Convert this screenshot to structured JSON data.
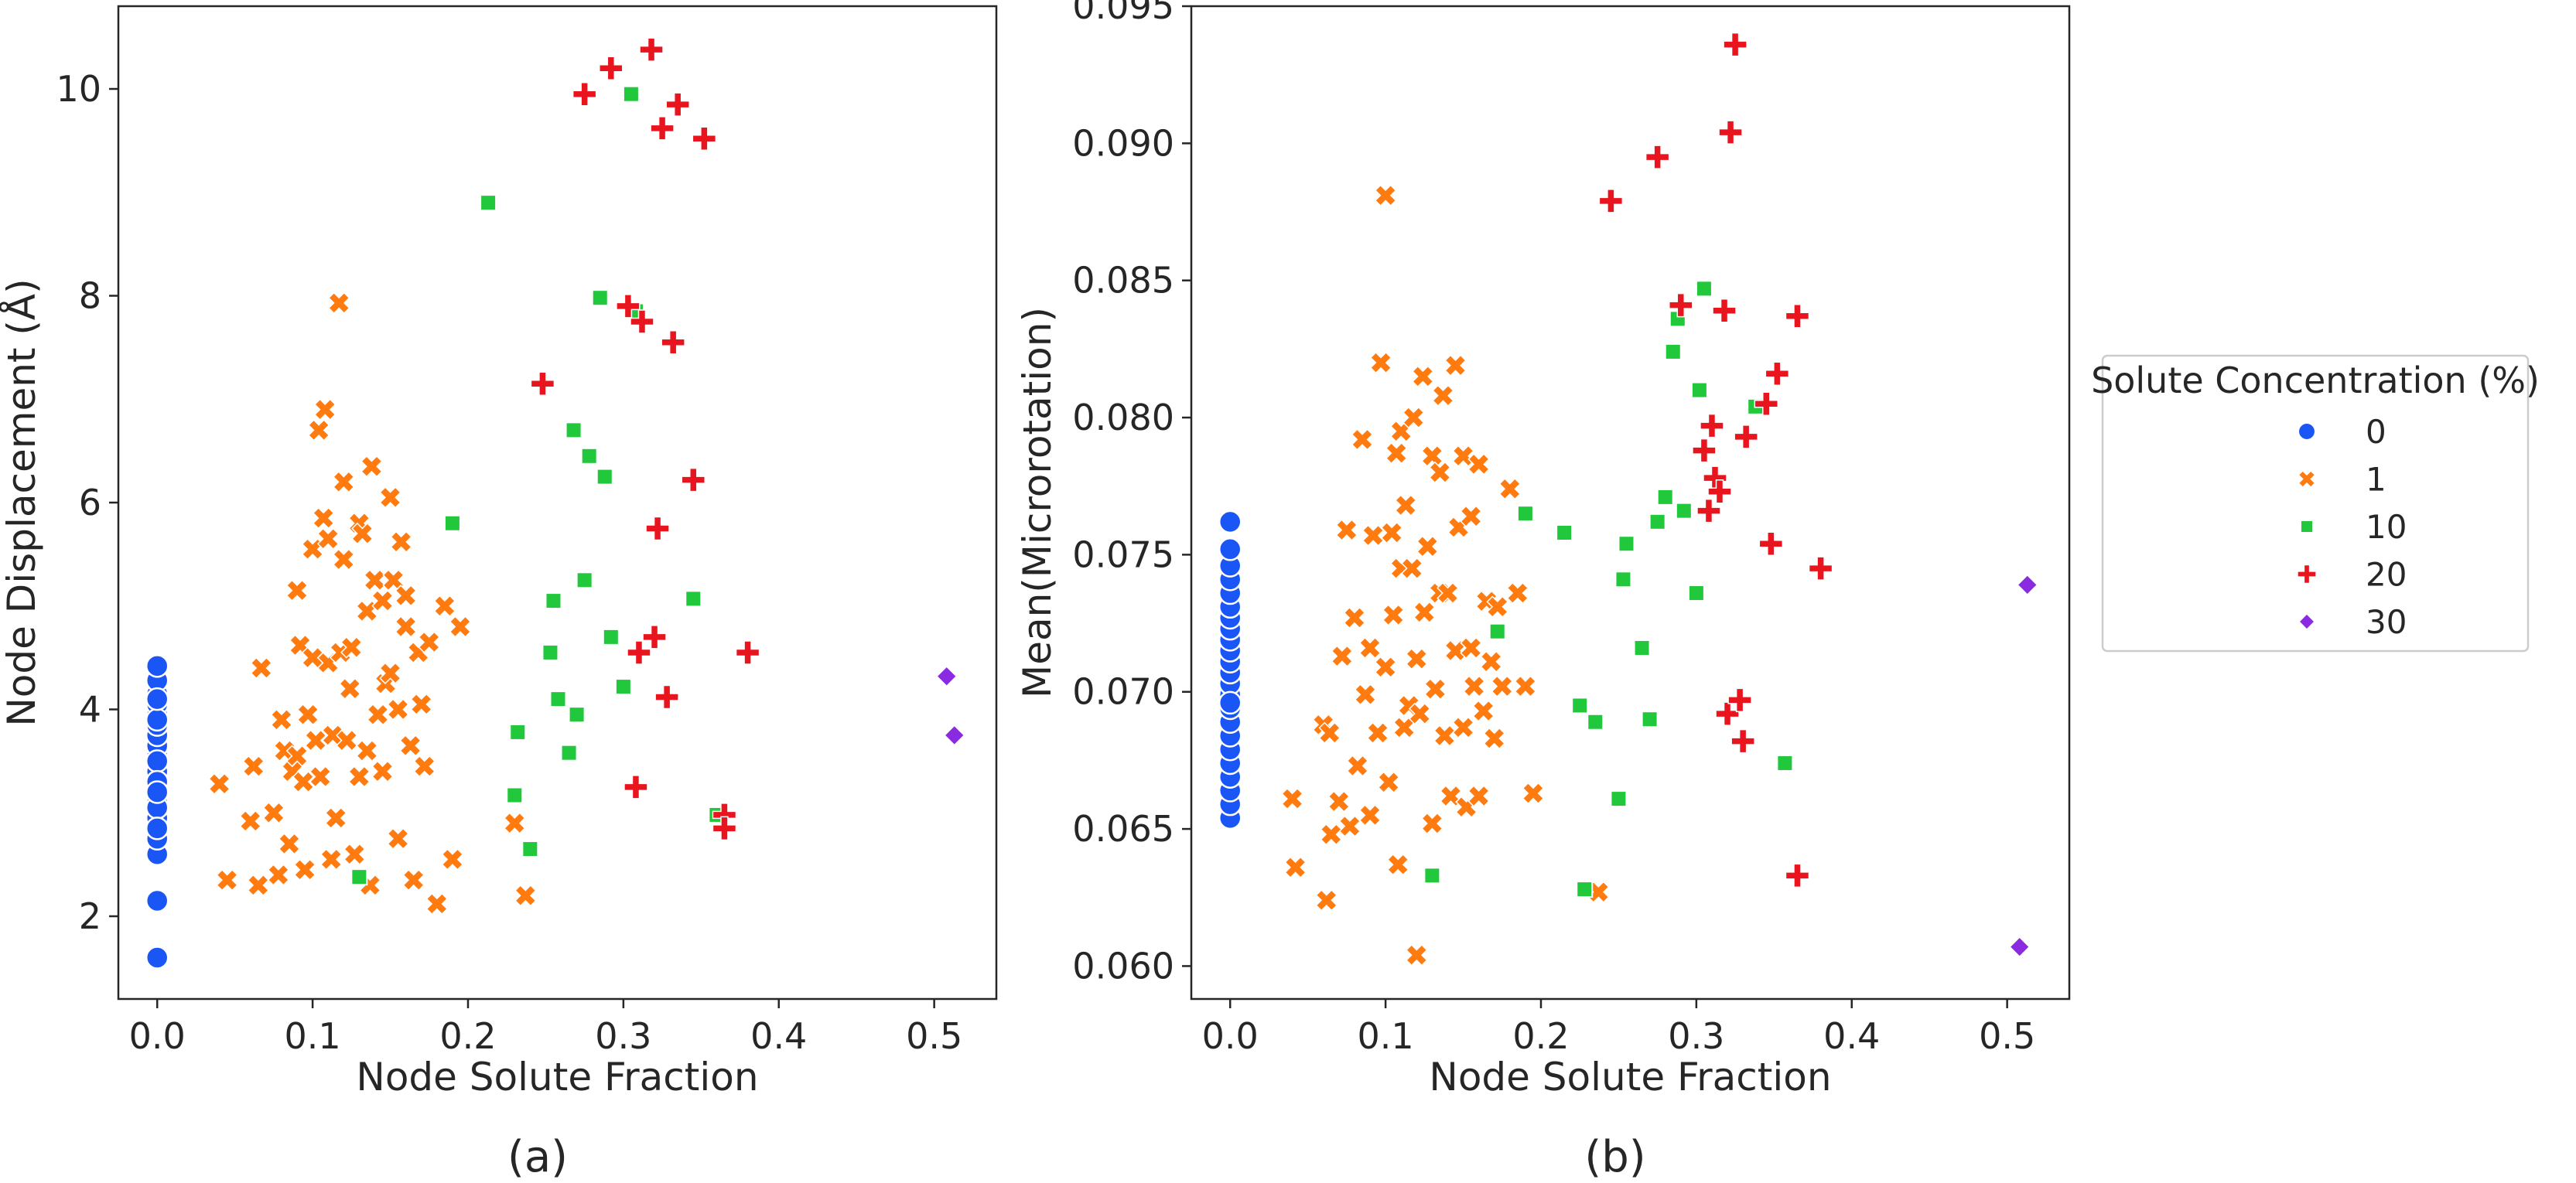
{
  "legend": {
    "title": "Solute Concentration (%)",
    "placement": "outside-right",
    "entries": [
      {
        "label": "0",
        "color": "#1a55f5",
        "marker": "circle"
      },
      {
        "label": "1",
        "color": "#ff7a0f",
        "marker": "x"
      },
      {
        "label": "10",
        "color": "#22c83c",
        "marker": "square"
      },
      {
        "label": "20",
        "color": "#e8141e",
        "marker": "plus"
      },
      {
        "label": "30",
        "color": "#8a2be2",
        "marker": "diamond"
      }
    ]
  },
  "panel_labels": [
    "(a)",
    "(b)"
  ],
  "chart_data": [
    {
      "type": "scatter",
      "xlabel": "Node Solute Fraction",
      "ylabel": "Node Displacement (Å)",
      "xlim": [
        -0.025,
        0.54
      ],
      "ylim": [
        1.2,
        10.8
      ],
      "xticks": [
        0.0,
        0.1,
        0.2,
        0.3,
        0.4,
        0.5
      ],
      "yticks": [
        2,
        4,
        6,
        8,
        10
      ],
      "xtick_labels": [
        "0.0",
        "0.1",
        "0.2",
        "0.3",
        "0.4",
        "0.5"
      ],
      "ytick_labels": [
        "2",
        "4",
        "6",
        "8",
        "10"
      ],
      "grid": false,
      "series": [
        {
          "name": "0",
          "x": [
            0,
            0,
            0,
            0,
            0,
            0,
            0,
            0,
            0,
            0,
            0,
            0,
            0,
            0,
            0,
            0,
            0,
            0,
            0,
            0,
            0,
            0,
            0,
            0
          ],
          "y": [
            1.6,
            2.15,
            2.6,
            2.75,
            2.95,
            3.1,
            3.25,
            3.4,
            3.55,
            3.65,
            3.75,
            3.85,
            3.95,
            4.05,
            4.15,
            4.28,
            4.42,
            3.05,
            3.5,
            3.3,
            2.85,
            3.2,
            3.9,
            4.1
          ]
        },
        {
          "name": "1",
          "x": [
            0.04,
            0.045,
            0.06,
            0.062,
            0.065,
            0.067,
            0.075,
            0.078,
            0.08,
            0.082,
            0.085,
            0.087,
            0.09,
            0.09,
            0.092,
            0.094,
            0.095,
            0.097,
            0.1,
            0.1,
            0.102,
            0.104,
            0.105,
            0.107,
            0.108,
            0.11,
            0.11,
            0.112,
            0.113,
            0.115,
            0.117,
            0.118,
            0.12,
            0.12,
            0.122,
            0.124,
            0.125,
            0.127,
            0.13,
            0.13,
            0.132,
            0.135,
            0.135,
            0.137,
            0.138,
            0.14,
            0.142,
            0.145,
            0.145,
            0.147,
            0.15,
            0.15,
            0.152,
            0.155,
            0.155,
            0.157,
            0.16,
            0.16,
            0.163,
            0.165,
            0.168,
            0.17,
            0.172,
            0.175,
            0.18,
            0.185,
            0.19,
            0.195,
            0.23,
            0.237
          ],
          "y": [
            3.28,
            2.35,
            2.92,
            3.45,
            2.3,
            4.4,
            3.0,
            2.4,
            3.9,
            3.6,
            2.7,
            3.4,
            3.55,
            5.15,
            4.62,
            3.3,
            2.45,
            3.95,
            4.5,
            5.55,
            3.7,
            6.7,
            3.35,
            5.85,
            6.9,
            4.45,
            5.65,
            2.55,
            3.75,
            2.95,
            7.93,
            4.55,
            5.45,
            6.2,
            3.7,
            4.2,
            4.6,
            2.6,
            5.8,
            3.35,
            5.7,
            3.6,
            4.95,
            2.3,
            6.35,
            5.25,
            3.95,
            5.05,
            3.4,
            4.25,
            6.05,
            4.35,
            5.25,
            2.75,
            4.0,
            5.62,
            4.8,
            5.1,
            3.65,
            2.35,
            4.55,
            4.05,
            3.45,
            4.65,
            2.12,
            5.0,
            2.55,
            4.8,
            2.9,
            2.2
          ]
        },
        {
          "name": "10",
          "x": [
            0.13,
            0.19,
            0.213,
            0.23,
            0.232,
            0.24,
            0.253,
            0.255,
            0.258,
            0.265,
            0.268,
            0.27,
            0.275,
            0.278,
            0.285,
            0.288,
            0.292,
            0.3,
            0.305,
            0.308,
            0.345,
            0.36
          ],
          "y": [
            2.38,
            5.8,
            8.9,
            3.17,
            3.78,
            2.65,
            4.55,
            5.05,
            4.1,
            3.58,
            6.7,
            3.95,
            5.25,
            6.45,
            7.98,
            6.25,
            4.7,
            4.22,
            9.95,
            7.85,
            5.07,
            2.98
          ]
        },
        {
          "name": "20",
          "x": [
            0.248,
            0.275,
            0.292,
            0.303,
            0.308,
            0.31,
            0.312,
            0.318,
            0.32,
            0.322,
            0.325,
            0.328,
            0.332,
            0.335,
            0.345,
            0.352,
            0.365,
            0.365,
            0.38
          ],
          "y": [
            7.15,
            9.95,
            10.2,
            7.9,
            3.25,
            4.55,
            7.75,
            10.38,
            4.7,
            5.75,
            9.62,
            4.12,
            7.55,
            9.85,
            6.22,
            9.52,
            2.98,
            2.85,
            4.55
          ]
        },
        {
          "name": "30",
          "x": [
            0.508,
            0.513
          ],
          "y": [
            4.32,
            3.75
          ]
        }
      ]
    },
    {
      "type": "scatter",
      "xlabel": "Node Solute Fraction",
      "ylabel": "Mean(Microrotation)",
      "xlim": [
        -0.025,
        0.54
      ],
      "ylim": [
        0.0588,
        0.095
      ],
      "xticks": [
        0.0,
        0.1,
        0.2,
        0.3,
        0.4,
        0.5
      ],
      "yticks": [
        0.06,
        0.065,
        0.07,
        0.075,
        0.08,
        0.085,
        0.09,
        0.095
      ],
      "xtick_labels": [
        "0.0",
        "0.1",
        "0.2",
        "0.3",
        "0.4",
        "0.5"
      ],
      "ytick_labels": [
        "0.060",
        "0.065",
        "0.070",
        "0.075",
        "0.080",
        "0.085",
        "0.090",
        "0.095"
      ],
      "grid": false,
      "series": [
        {
          "name": "0",
          "x": [
            0,
            0,
            0,
            0,
            0,
            0,
            0,
            0,
            0,
            0,
            0,
            0,
            0,
            0,
            0,
            0,
            0,
            0,
            0,
            0,
            0,
            0,
            0,
            0
          ],
          "y": [
            0.0654,
            0.0659,
            0.0664,
            0.0669,
            0.0674,
            0.0679,
            0.0684,
            0.0689,
            0.0694,
            0.0699,
            0.0703,
            0.0707,
            0.0711,
            0.0715,
            0.0719,
            0.0723,
            0.0727,
            0.0731,
            0.0736,
            0.0741,
            0.0746,
            0.0752,
            0.0762,
            0.0696
          ]
        },
        {
          "name": "1",
          "x": [
            0.04,
            0.042,
            0.06,
            0.062,
            0.064,
            0.065,
            0.07,
            0.072,
            0.075,
            0.077,
            0.08,
            0.082,
            0.085,
            0.087,
            0.09,
            0.09,
            0.092,
            0.095,
            0.097,
            0.1,
            0.1,
            0.102,
            0.104,
            0.105,
            0.107,
            0.108,
            0.11,
            0.11,
            0.112,
            0.113,
            0.115,
            0.117,
            0.118,
            0.12,
            0.12,
            0.122,
            0.124,
            0.125,
            0.127,
            0.13,
            0.13,
            0.132,
            0.135,
            0.135,
            0.137,
            0.138,
            0.14,
            0.142,
            0.145,
            0.145,
            0.147,
            0.15,
            0.15,
            0.152,
            0.155,
            0.155,
            0.157,
            0.16,
            0.16,
            0.163,
            0.165,
            0.168,
            0.17,
            0.172,
            0.175,
            0.18,
            0.185,
            0.19,
            0.195,
            0.237
          ],
          "y": [
            0.0661,
            0.0636,
            0.0688,
            0.0624,
            0.0685,
            0.0648,
            0.066,
            0.0713,
            0.0759,
            0.0651,
            0.0727,
            0.0673,
            0.0792,
            0.0699,
            0.0716,
            0.0655,
            0.0757,
            0.0685,
            0.082,
            0.0709,
            0.0881,
            0.0667,
            0.0758,
            0.0728,
            0.0787,
            0.0637,
            0.0745,
            0.0795,
            0.0687,
            0.0768,
            0.0695,
            0.0745,
            0.08,
            0.0604,
            0.0712,
            0.0692,
            0.0815,
            0.0729,
            0.0753,
            0.0652,
            0.0786,
            0.0701,
            0.0736,
            0.078,
            0.0808,
            0.0684,
            0.0736,
            0.0662,
            0.0819,
            0.0715,
            0.076,
            0.0687,
            0.0786,
            0.0658,
            0.0716,
            0.0764,
            0.0702,
            0.0662,
            0.0783,
            0.0693,
            0.0733,
            0.0711,
            0.0683,
            0.0731,
            0.0702,
            0.0774,
            0.0736,
            0.0702,
            0.0663,
            0.0627
          ]
        },
        {
          "name": "10",
          "x": [
            0.13,
            0.172,
            0.19,
            0.215,
            0.225,
            0.228,
            0.235,
            0.25,
            0.253,
            0.255,
            0.265,
            0.27,
            0.275,
            0.28,
            0.285,
            0.288,
            0.292,
            0.3,
            0.302,
            0.305,
            0.338,
            0.357
          ],
          "y": [
            0.0633,
            0.0722,
            0.0765,
            0.0758,
            0.0695,
            0.0628,
            0.0689,
            0.0661,
            0.0741,
            0.0754,
            0.0716,
            0.069,
            0.0762,
            0.0771,
            0.0824,
            0.0836,
            0.0766,
            0.0736,
            0.081,
            0.0847,
            0.0804,
            0.0674
          ]
        },
        {
          "name": "20",
          "x": [
            0.245,
            0.275,
            0.29,
            0.305,
            0.308,
            0.31,
            0.312,
            0.315,
            0.318,
            0.32,
            0.322,
            0.325,
            0.328,
            0.33,
            0.332,
            0.345,
            0.348,
            0.352,
            0.365,
            0.365,
            0.38
          ],
          "y": [
            0.0879,
            0.0895,
            0.0841,
            0.0788,
            0.0766,
            0.0797,
            0.0778,
            0.0773,
            0.0839,
            0.0692,
            0.0904,
            0.0936,
            0.0697,
            0.0682,
            0.0793,
            0.0805,
            0.0754,
            0.0816,
            0.0837,
            0.0633,
            0.0745
          ]
        },
        {
          "name": "30",
          "x": [
            0.508,
            0.513
          ],
          "y": [
            0.0607,
            0.0739
          ]
        }
      ]
    }
  ]
}
